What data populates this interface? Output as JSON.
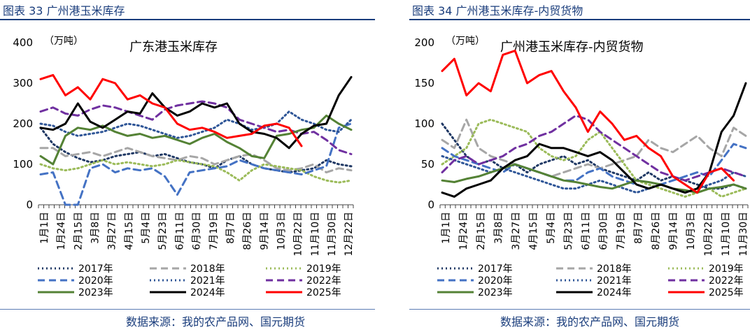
{
  "source_text": "数据来源：我的农产品网、国元期货",
  "chart_data": [
    {
      "type": "line",
      "figure_title": "图表 33  广州港玉米库存",
      "title": "广东港玉米库存",
      "unit": "（万吨）",
      "ylim": [
        0,
        400
      ],
      "yticks": [
        "0",
        "100",
        "200",
        "300",
        "400"
      ],
      "xtick_labels": [
        "1月1日",
        "1月24日",
        "2月15日",
        "3月8日",
        "3月27日",
        "4月15日",
        "5月4日",
        "5月23日",
        "6月11日",
        "6月30日",
        "7月19日",
        "8月7日",
        "8月26日",
        "9月14日",
        "10月3日",
        "10月22日",
        "11月10日",
        "11月30日",
        "12月22日"
      ],
      "series": [
        {
          "name": "2017年",
          "color": "#1f3864",
          "dash": "dot",
          "values": [
            190,
            150,
            130,
            115,
            105,
            110,
            120,
            125,
            130,
            120,
            125,
            115,
            105,
            100,
            90,
            110,
            120,
            100,
            90,
            85,
            80,
            85,
            90,
            110,
            100,
            95
          ]
        },
        {
          "name": "2018年",
          "color": "#a6a6a6",
          "dash": "dash",
          "values": [
            140,
            140,
            120,
            125,
            130,
            120,
            130,
            140,
            130,
            120,
            115,
            110,
            120,
            115,
            100,
            110,
            120,
            125,
            110,
            90,
            85,
            90,
            100,
            80,
            90,
            85
          ]
        },
        {
          "name": "2019年",
          "color": "#9bbb59",
          "dash": "dot",
          "values": [
            100,
            90,
            85,
            90,
            100,
            110,
            100,
            105,
            100,
            95,
            100,
            110,
            105,
            100,
            95,
            80,
            60,
            85,
            100,
            95,
            90,
            85,
            70,
            60,
            55,
            60
          ]
        },
        {
          "name": "2020年",
          "color": "#4472c4",
          "dash": "dash",
          "values": [
            75,
            80,
            0,
            0,
            90,
            100,
            80,
            90,
            85,
            90,
            70,
            25,
            80,
            85,
            90,
            95,
            110,
            100,
            90,
            85,
            80,
            75,
            85,
            95,
            190,
            200
          ]
        },
        {
          "name": "2021年",
          "color": "#2e5597",
          "dash": "dot",
          "values": [
            200,
            195,
            180,
            170,
            175,
            180,
            190,
            200,
            195,
            185,
            175,
            165,
            170,
            180,
            190,
            210,
            200,
            185,
            190,
            200,
            230,
            210,
            200,
            185,
            180,
            210
          ]
        },
        {
          "name": "2022年",
          "color": "#7030a0",
          "dash": "dash",
          "values": [
            230,
            240,
            225,
            220,
            235,
            245,
            240,
            230,
            220,
            210,
            235,
            245,
            250,
            255,
            250,
            240,
            210,
            200,
            190,
            180,
            185,
            175,
            180,
            160,
            135,
            125
          ]
        },
        {
          "name": "2023年",
          "color": "#548235",
          "dash": "solid",
          "values": [
            120,
            100,
            170,
            190,
            185,
            195,
            180,
            170,
            175,
            165,
            170,
            160,
            150,
            165,
            175,
            155,
            140,
            120,
            115,
            170,
            175,
            185,
            190,
            220,
            200,
            185
          ]
        },
        {
          "name": "2024年",
          "color": "#000000",
          "dash": "solid",
          "values": [
            190,
            185,
            200,
            250,
            205,
            190,
            210,
            230,
            225,
            275,
            240,
            220,
            230,
            250,
            240,
            250,
            200,
            180,
            175,
            165,
            140,
            175,
            195,
            200,
            270,
            315
          ]
        },
        {
          "name": "2025年",
          "color": "#ff0000",
          "dash": "solid",
          "values": [
            310,
            320,
            270,
            290,
            260,
            310,
            300,
            260,
            270,
            250,
            240,
            200,
            185,
            190,
            180,
            165,
            170,
            175,
            195,
            200,
            190,
            145
          ]
        }
      ]
    },
    {
      "type": "line",
      "figure_title": "图表 34  广州港玉米库存-内贸货物",
      "title": "广州港玉米库存-内贸货物",
      "unit": "（万吨）",
      "ylim": [
        0,
        200
      ],
      "yticks": [
        "0",
        "50",
        "100",
        "150",
        "200"
      ],
      "xtick_labels": [
        "1月1日",
        "1月24日",
        "2月15日",
        "3月8日",
        "3月27日",
        "4月15日",
        "5月4日",
        "5月23日",
        "6月11日",
        "6月30日",
        "7月19日",
        "8月7日",
        "8月26日",
        "9月14日",
        "10月3日",
        "10月22日",
        "11月10日",
        "11月30日"
      ],
      "series": [
        {
          "name": "2017年",
          "color": "#1f3864",
          "dash": "dot",
          "values": [
            100,
            80,
            60,
            50,
            55,
            45,
            50,
            40,
            50,
            55,
            60,
            50,
            55,
            45,
            40,
            35,
            30,
            40,
            30,
            35,
            30,
            25,
            20,
            20,
            25,
            20
          ]
        },
        {
          "name": "2018年",
          "color": "#a6a6a6",
          "dash": "dash",
          "values": [
            80,
            70,
            105,
            70,
            60,
            55,
            50,
            45,
            40,
            35,
            40,
            45,
            50,
            45,
            50,
            55,
            60,
            80,
            70,
            65,
            75,
            85,
            70,
            60,
            95,
            85
          ]
        },
        {
          "name": "2019年",
          "color": "#9bbb59",
          "dash": "dot",
          "values": [
            50,
            60,
            70,
            100,
            105,
            100,
            95,
            90,
            70,
            60,
            55,
            60,
            80,
            90,
            70,
            50,
            30,
            25,
            20,
            15,
            10,
            15,
            20,
            10,
            15,
            20
          ]
        },
        {
          "name": "2020年",
          "color": "#4472c4",
          "dash": "dash",
          "values": [
            70,
            60,
            55,
            50,
            45,
            40,
            50,
            45,
            40,
            35,
            30,
            30,
            40,
            45,
            35,
            30,
            25,
            20,
            25,
            30,
            35,
            40,
            35,
            55,
            75,
            70
          ]
        },
        {
          "name": "2021年",
          "color": "#2e5597",
          "dash": "dot",
          "values": [
            60,
            55,
            50,
            45,
            40,
            45,
            40,
            35,
            30,
            25,
            20,
            20,
            25,
            30,
            25,
            20,
            15,
            20,
            25,
            20,
            15,
            20,
            25,
            30,
            40,
            35
          ]
        },
        {
          "name": "2022年",
          "color": "#7030a0",
          "dash": "dash",
          "values": [
            40,
            55,
            60,
            50,
            55,
            60,
            70,
            75,
            85,
            90,
            100,
            110,
            105,
            90,
            80,
            70,
            60,
            50,
            40,
            35,
            30,
            35,
            40,
            45,
            40,
            35
          ]
        },
        {
          "name": "2023年",
          "color": "#548235",
          "dash": "solid",
          "values": [
            30,
            28,
            32,
            35,
            40,
            45,
            50,
            45,
            40,
            35,
            30,
            28,
            25,
            22,
            20,
            25,
            30,
            28,
            25,
            20,
            18,
            15,
            20,
            22,
            25,
            20
          ]
        },
        {
          "name": "2024年",
          "color": "#000000",
          "dash": "solid",
          "values": [
            15,
            10,
            20,
            25,
            30,
            45,
            55,
            60,
            75,
            70,
            70,
            65,
            60,
            65,
            55,
            40,
            25,
            20,
            25,
            20,
            15,
            20,
            40,
            90,
            110,
            150
          ]
        },
        {
          "name": "2025年",
          "color": "#ff0000",
          "dash": "solid",
          "values": [
            165,
            180,
            135,
            150,
            140,
            185,
            190,
            150,
            160,
            165,
            140,
            120,
            90,
            115,
            100,
            80,
            85,
            70,
            60,
            35,
            25,
            15,
            40,
            45,
            30
          ]
        }
      ]
    }
  ]
}
